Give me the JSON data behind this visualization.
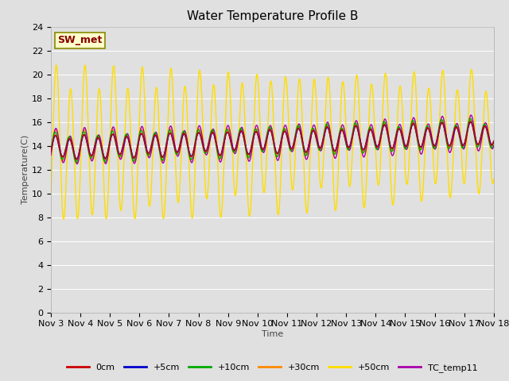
{
  "title": "Water Temperature Profile B",
  "xlabel": "Time",
  "ylabel": "Temperature(C)",
  "ylim": [
    0,
    24
  ],
  "yticks": [
    0,
    2,
    4,
    6,
    8,
    10,
    12,
    14,
    16,
    18,
    20,
    22,
    24
  ],
  "n_days": 15,
  "x_labels": [
    "Nov 3",
    "Nov 4",
    "Nov 5",
    "Nov 6",
    "Nov 7",
    "Nov 8",
    "Nov 9",
    "Nov 10",
    "Nov 11",
    "Nov 12",
    "Nov 13",
    "Nov 14",
    "Nov 15",
    "Nov 16",
    "Nov 17",
    "Nov 18"
  ],
  "background_color": "#e0e0e0",
  "plot_bg_color": "#e0e0e0",
  "grid_color": "#ffffff",
  "annotation_text": "SW_met",
  "annotation_color": "#880000",
  "annotation_bg": "#ffffcc",
  "annotation_border": "#888800",
  "colors": {
    "0cm": "#cc0000",
    "+5cm": "#0000cc",
    "+10cm": "#00aa00",
    "+30cm": "#ff8800",
    "+50cm": "#ffdd00",
    "TC_temp11": "#aa00aa"
  },
  "line_width": 1.0,
  "font_size": 8,
  "title_font_size": 11
}
